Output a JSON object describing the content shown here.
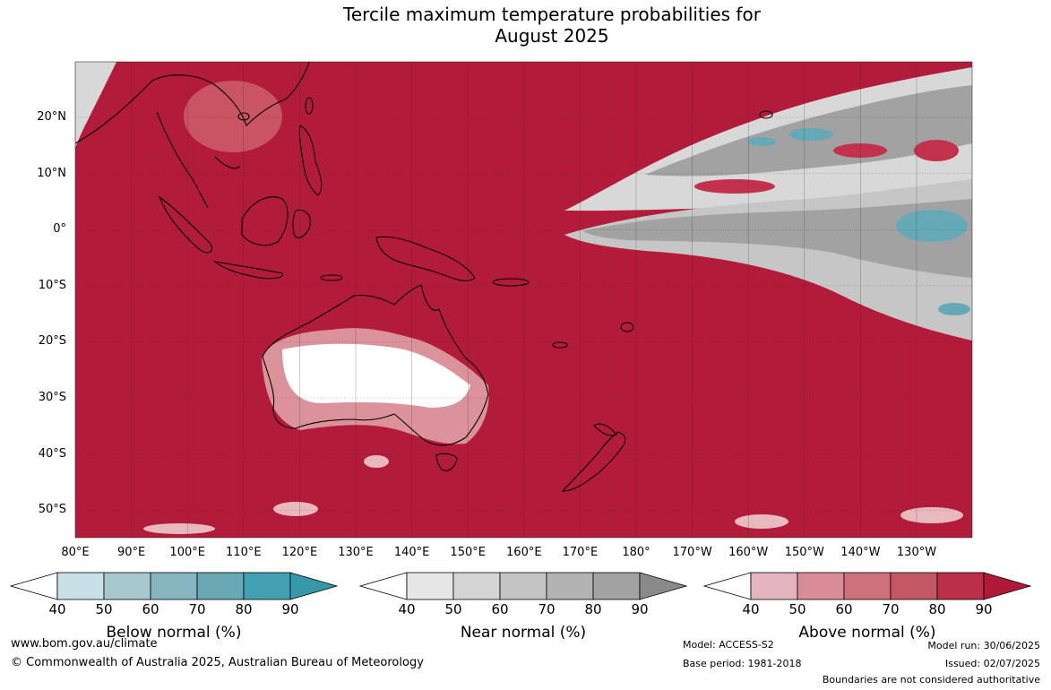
{
  "title": {
    "line1": "Tercile maximum temperature probabilities for",
    "line2": "August 2025"
  },
  "map": {
    "lat_labels": [
      "20°N",
      "10°N",
      "0°",
      "10°S",
      "20°S",
      "30°S",
      "40°S",
      "50°S"
    ],
    "lon_labels": [
      "80°E",
      "90°E",
      "100°E",
      "110°E",
      "120°E",
      "130°E",
      "140°E",
      "150°E",
      "160°E",
      "170°E",
      "180°",
      "170°W",
      "160°W",
      "150°W",
      "140°W",
      "130°W"
    ],
    "colors": {
      "above_90": "#b31b3a",
      "above_80": "#c3324d",
      "above_70": "#c95462",
      "above_60": "#d0727c",
      "above_50": "#db929a",
      "above_40": "#e8b9bf",
      "near_80": "#a2a2a2",
      "near_70": "#b4b4b4",
      "near_60": "#c6c6c6",
      "near_50": "#d8d8d8",
      "below_60": "#88b5c1",
      "below_70": "#66a9b6",
      "land_outline": "#000000",
      "grid": "#333333"
    }
  },
  "colorbars": [
    {
      "title": "Below normal (%)",
      "ticks": [
        "40",
        "50",
        "60",
        "70",
        "80",
        "90"
      ],
      "colors": [
        "#ffffff",
        "#c8e0e6",
        "#a6c9ce",
        "#86b5c0",
        "#67a8b3",
        "#42a0b1",
        "#3698a9"
      ]
    },
    {
      "title": "Near normal (%)",
      "ticks": [
        "40",
        "50",
        "60",
        "70",
        "80",
        "90"
      ],
      "colors": [
        "#ffffff",
        "#e6e6e6",
        "#d4d4d4",
        "#c4c4c4",
        "#b3b3b3",
        "#a2a2a2",
        "#8a8a8a"
      ]
    },
    {
      "title": "Above normal (%)",
      "ticks": [
        "40",
        "50",
        "60",
        "70",
        "80",
        "90"
      ],
      "colors": [
        "#ffffff",
        "#e3b5be",
        "#d78c96",
        "#cc717a",
        "#c45764",
        "#bb3048",
        "#b01a38"
      ]
    }
  ],
  "footer": {
    "url": "www.bom.gov.au/climate",
    "copyright": "© Commonwealth of Australia 2025, Australian Bureau of Meteorology",
    "model": "Model: ACCESS-S2",
    "base_period": "Base period: 1981-2018",
    "model_run": "Model run: 30/06/2025",
    "issued": "Issued: 02/07/2025",
    "disclaimer": "Boundaries are not considered authoritative"
  }
}
